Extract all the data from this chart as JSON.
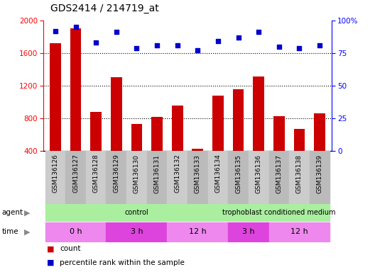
{
  "title": "GDS2414 / 214719_at",
  "samples": [
    "GSM136126",
    "GSM136127",
    "GSM136128",
    "GSM136129",
    "GSM136130",
    "GSM136131",
    "GSM136132",
    "GSM136133",
    "GSM136134",
    "GSM136135",
    "GSM136136",
    "GSM136137",
    "GSM136138",
    "GSM136139"
  ],
  "counts": [
    1720,
    1900,
    880,
    1300,
    730,
    820,
    960,
    430,
    1080,
    1160,
    1310,
    830,
    670,
    860
  ],
  "percentiles": [
    92,
    95,
    83,
    91,
    79,
    81,
    81,
    77,
    84,
    87,
    91,
    80,
    79,
    81
  ],
  "ylim_left": [
    400,
    2000
  ],
  "ylim_right": [
    0,
    100
  ],
  "yticks_left": [
    400,
    800,
    1200,
    1600,
    2000
  ],
  "yticks_right": [
    0,
    25,
    50,
    75,
    100
  ],
  "bar_color": "#cc0000",
  "dot_color": "#0000cc",
  "agent_groups": [
    {
      "label": "control",
      "start": 0,
      "end": 9,
      "color": "#aaeea0"
    },
    {
      "label": "trophoblast conditioned medium",
      "start": 9,
      "end": 14,
      "color": "#aaeea0"
    }
  ],
  "time_groups": [
    {
      "label": "0 h",
      "start": 0,
      "end": 3,
      "color": "#ee88ee"
    },
    {
      "label": "3 h",
      "start": 3,
      "end": 6,
      "color": "#dd44dd"
    },
    {
      "label": "12 h",
      "start": 6,
      "end": 9,
      "color": "#ee88ee"
    },
    {
      "label": "3 h",
      "start": 9,
      "end": 11,
      "color": "#dd44dd"
    },
    {
      "label": "12 h",
      "start": 11,
      "end": 14,
      "color": "#ee88ee"
    }
  ],
  "agent_label": "agent",
  "time_label": "time",
  "legend_count_label": "count",
  "legend_pct_label": "percentile rank within the sample",
  "bg_color": "#ffffff",
  "xtick_bg_odd": "#cccccc",
  "xtick_bg_even": "#bbbbbb"
}
